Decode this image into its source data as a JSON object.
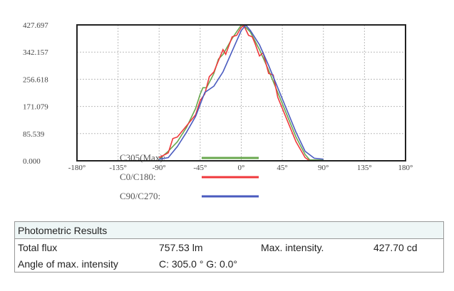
{
  "chart_data": {
    "type": "line",
    "xlim": [
      -180,
      180
    ],
    "ylim": [
      0,
      427.697
    ],
    "x_ticks": [
      "-180°",
      "-135°",
      "-90°",
      "-45°",
      "0°",
      "45°",
      "90°",
      "135°",
      "180°"
    ],
    "y_ticks": [
      "0.000",
      "85.539",
      "171.079",
      "256.618",
      "342.157",
      "427.697"
    ],
    "grid": true,
    "legend_placement": "bottom",
    "series": [
      {
        "name": "C305(Max):",
        "color": "#6aa84f",
        "x": [
          -90,
          -80,
          -70,
          -60,
          -50,
          -45,
          -42,
          -38,
          -30,
          -25,
          -20,
          -10,
          0,
          5,
          10,
          20,
          30,
          40,
          50,
          60,
          70,
          75,
          90
        ],
        "y": [
          5,
          30,
          60,
          105,
          165,
          210,
          230,
          230,
          275,
          320,
          335,
          385,
          427,
          420,
          405,
          350,
          285,
          215,
          145,
          75,
          20,
          3,
          2
        ]
      },
      {
        "name": "C0/C180:",
        "color": "#f0383c",
        "x": [
          -90,
          -80,
          -75,
          -70,
          -60,
          -50,
          -45,
          -40,
          -35,
          -30,
          -25,
          -20,
          -17,
          -10,
          -5,
          0,
          3,
          8,
          12,
          15,
          20,
          24,
          30,
          35,
          40,
          50,
          60,
          70,
          75,
          90
        ],
        "y": [
          10,
          25,
          70,
          75,
          110,
          145,
          190,
          210,
          265,
          280,
          315,
          350,
          335,
          390,
          395,
          420,
          425,
          395,
          390,
          370,
          330,
          340,
          275,
          270,
          200,
          130,
          60,
          10,
          0,
          0
        ]
      },
      {
        "name": "C90/C270:",
        "color": "#4a5bbf",
        "x": [
          -90,
          -80,
          -70,
          -60,
          -50,
          -40,
          -30,
          -20,
          -10,
          0,
          5,
          10,
          20,
          30,
          40,
          50,
          60,
          70,
          80,
          90
        ],
        "y": [
          5,
          10,
          45,
          90,
          140,
          215,
          235,
          280,
          345,
          410,
          427,
          410,
          365,
          300,
          230,
          160,
          90,
          30,
          8,
          5
        ]
      }
    ]
  },
  "results": {
    "title": "Photometric Results",
    "total_flux_label": "Total flux",
    "total_flux": "757.53 lm",
    "max_intensity_label": "Max. intensity.",
    "max_intensity": "427.70 cd",
    "angle_label": "Angle of max. intensity",
    "angle": "C: 305.0 ° G: 0.0°"
  }
}
